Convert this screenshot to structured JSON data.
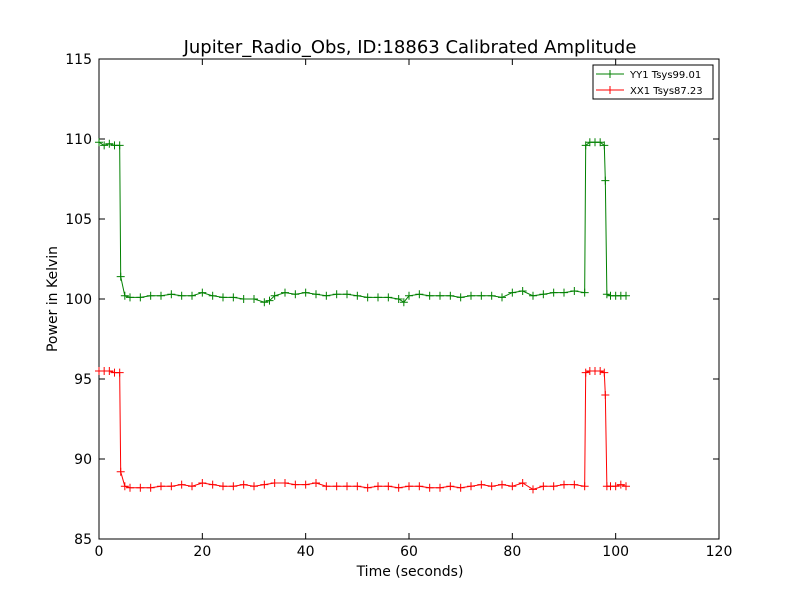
{
  "chart_data": {
    "type": "line",
    "title": "Jupiter_Radio_Obs, ID:18863 Calibrated Amplitude",
    "xlabel": "Time (seconds)",
    "ylabel": "Power in Kelvin",
    "xlim": [
      0,
      120
    ],
    "ylim": [
      85,
      115
    ],
    "xticks": [
      0,
      20,
      40,
      60,
      80,
      100,
      120
    ],
    "yticks": [
      85,
      90,
      95,
      100,
      105,
      110,
      115
    ],
    "grid": false,
    "legend_position": "top-right",
    "marker": "+",
    "series": [
      {
        "name": "YY1 Tsys99.01",
        "color": "#008000",
        "x": [
          0,
          1,
          2,
          3,
          4,
          4.2,
          5,
          6,
          8,
          10,
          12,
          14,
          16,
          18,
          20,
          22,
          24,
          26,
          28,
          30,
          32,
          33,
          34,
          36,
          38,
          40,
          42,
          44,
          46,
          48,
          50,
          52,
          54,
          56,
          58,
          59,
          60,
          62,
          64,
          66,
          68,
          70,
          72,
          74,
          76,
          78,
          80,
          82,
          84,
          86,
          88,
          90,
          92,
          94,
          94.2,
          95,
          96,
          97,
          97.8,
          98,
          98.3,
          99,
          100,
          101,
          102
        ],
        "y": [
          109.8,
          109.6,
          109.7,
          109.6,
          109.6,
          101.4,
          100.2,
          100.1,
          100.1,
          100.2,
          100.2,
          100.3,
          100.2,
          100.2,
          100.4,
          100.2,
          100.1,
          100.1,
          100.0,
          100.0,
          99.8,
          99.9,
          100.2,
          100.4,
          100.3,
          100.4,
          100.3,
          100.2,
          100.3,
          100.3,
          100.2,
          100.1,
          100.1,
          100.1,
          100.0,
          99.8,
          100.2,
          100.3,
          100.2,
          100.2,
          100.2,
          100.1,
          100.2,
          100.2,
          100.2,
          100.1,
          100.4,
          100.5,
          100.2,
          100.3,
          100.4,
          100.4,
          100.5,
          100.4,
          109.6,
          109.8,
          109.8,
          109.8,
          109.6,
          107.4,
          100.3,
          100.2,
          100.2,
          100.2,
          100.2
        ]
      },
      {
        "name": "XX1 Tsys87.23",
        "color": "#ff0000",
        "x": [
          0,
          1,
          2,
          3,
          4,
          4.2,
          5,
          6,
          8,
          10,
          12,
          14,
          16,
          18,
          20,
          22,
          24,
          26,
          28,
          30,
          32,
          34,
          36,
          38,
          40,
          42,
          44,
          46,
          48,
          50,
          52,
          54,
          56,
          58,
          60,
          62,
          64,
          66,
          68,
          70,
          72,
          74,
          76,
          78,
          80,
          82,
          84,
          86,
          88,
          90,
          92,
          94,
          94.2,
          95,
          96,
          97,
          97.8,
          98,
          98.3,
          99,
          100,
          101,
          102
        ],
        "y": [
          95.5,
          95.5,
          95.5,
          95.4,
          95.4,
          89.2,
          88.3,
          88.2,
          88.2,
          88.2,
          88.3,
          88.3,
          88.4,
          88.3,
          88.5,
          88.4,
          88.3,
          88.3,
          88.4,
          88.3,
          88.4,
          88.5,
          88.5,
          88.4,
          88.4,
          88.5,
          88.3,
          88.3,
          88.3,
          88.3,
          88.2,
          88.3,
          88.3,
          88.2,
          88.3,
          88.3,
          88.2,
          88.2,
          88.3,
          88.2,
          88.3,
          88.4,
          88.3,
          88.4,
          88.3,
          88.5,
          88.1,
          88.3,
          88.3,
          88.4,
          88.4,
          88.3,
          95.4,
          95.5,
          95.5,
          95.5,
          95.4,
          94.0,
          88.3,
          88.3,
          88.3,
          88.4,
          88.3
        ]
      }
    ]
  }
}
